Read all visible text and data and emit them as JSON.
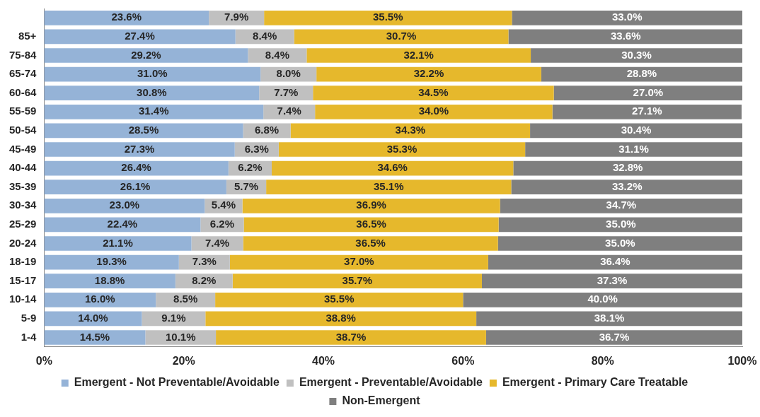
{
  "chart_data": {
    "type": "bar",
    "orientation": "horizontal",
    "stacked": true,
    "categories": [
      null,
      "85+",
      "75-84",
      "65-74",
      "60-64",
      "55-59",
      "50-54",
      "45-49",
      "40-44",
      "35-39",
      "30-34",
      "25-29",
      "20-24",
      "18-19",
      "15-17",
      "10-14",
      "5-9",
      "1-4"
    ],
    "series": [
      {
        "name": "Emergent - Not Preventable/Avoidable",
        "color": "#95b3d7",
        "values": [
          23.6,
          27.4,
          29.2,
          31.0,
          30.8,
          31.4,
          28.5,
          27.3,
          26.4,
          26.1,
          23.0,
          22.4,
          21.1,
          19.3,
          18.8,
          16.0,
          14.0,
          14.5
        ],
        "value_labels": [
          "23.6%",
          "27.4%",
          "29.2%",
          "31.0%",
          "30.8%",
          "31.4%",
          "28.5%",
          "27.3%",
          "26.4%",
          "26.1%",
          "23.0%",
          "22.4%",
          "21.1%",
          "19.3%",
          "18.8%",
          "16.0%",
          "14.0%",
          "14.5%"
        ]
      },
      {
        "name": "Emergent - Preventable/Avoidable",
        "color": "#c0c0c0",
        "values": [
          7.9,
          8.4,
          8.4,
          8.0,
          7.7,
          7.4,
          6.8,
          6.3,
          6.2,
          5.7,
          5.4,
          6.2,
          7.4,
          7.3,
          8.2,
          8.5,
          9.1,
          10.1
        ],
        "value_labels": [
          "7.9%",
          "8.4%",
          "8.4%",
          "8.0%",
          "7.7%",
          "7.4%",
          "6.8%",
          "6.3%",
          "6.2%",
          "5.7%",
          "5.4%",
          "6.2%",
          "7.4%",
          "7.3%",
          "8.2%",
          "8.5%",
          "9.1%",
          "10.1%"
        ]
      },
      {
        "name": "Emergent - Primary Care Treatable",
        "color": "#e6b82c",
        "values": [
          35.5,
          30.7,
          32.1,
          32.2,
          34.5,
          34.0,
          34.3,
          35.3,
          34.6,
          35.1,
          36.9,
          36.5,
          36.5,
          37.0,
          35.7,
          35.5,
          38.8,
          38.7
        ],
        "value_labels": [
          "35.5%",
          "30.7%",
          "32.1%",
          "32.2%",
          "34.5%",
          "34.0%",
          "34.3%",
          "35.3%",
          "34.6%",
          "35.1%",
          "36.9%",
          "36.5%",
          "36.5%",
          "37.0%",
          "35.7%",
          "35.5%",
          "38.8%",
          "38.7%"
        ]
      },
      {
        "name": "Non-Emergent",
        "color": "#7f7f7f",
        "values": [
          33.0,
          33.6,
          30.3,
          28.8,
          27.0,
          27.1,
          30.4,
          31.1,
          32.8,
          33.2,
          34.7,
          35.0,
          35.0,
          36.4,
          37.3,
          40.0,
          38.1,
          36.7
        ],
        "value_labels": [
          "33.0%",
          "33.6%",
          "30.3%",
          "28.8%",
          "27.0%",
          "27.1%",
          "30.4%",
          "31.1%",
          "32.8%",
          "33.2%",
          "34.7%",
          "35.0%",
          "35.0%",
          "36.4%",
          "37.3%",
          "40.0%",
          "38.1%",
          "36.7%"
        ]
      }
    ],
    "xlim": [
      0,
      100
    ],
    "xticks": [
      {
        "value": 0,
        "label": "0%"
      },
      {
        "value": 20,
        "label": "20%"
      },
      {
        "value": 40,
        "label": "40%"
      },
      {
        "value": 60,
        "label": "60%"
      },
      {
        "value": 80,
        "label": "80%"
      },
      {
        "value": 100,
        "label": "100%"
      }
    ],
    "grid": false,
    "legend": "bottom"
  }
}
